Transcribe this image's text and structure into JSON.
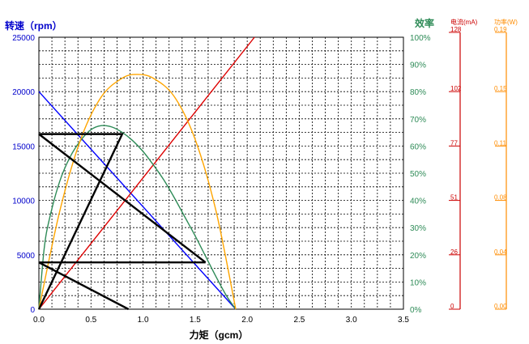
{
  "chart_data": {
    "type": "line",
    "title": "",
    "xlabel": "力矩（gcm）",
    "ylabel": "转速（rpm）",
    "x_ticks": [
      "0.0",
      "0.5",
      "1.0",
      "1.5",
      "2.0",
      "2.5",
      "3.0",
      "3.5"
    ],
    "xlim": [
      0,
      3.5
    ],
    "ylim": [
      0,
      25000
    ],
    "grid": true,
    "axes": {
      "speed": {
        "label": "转速（rpm）",
        "ticks": [
          "0",
          "5000",
          "10000",
          "15000",
          "20000",
          "25000"
        ],
        "color": "#0000cc"
      },
      "efficiency": {
        "label": "效率",
        "ticks": [
          "0%",
          "10%",
          "20%",
          "30%",
          "40%",
          "50%",
          "60%",
          "70%",
          "80%",
          "90%",
          "100%"
        ],
        "range": [
          0,
          100
        ],
        "color": "#2e8b57"
      },
      "current": {
        "label": "电流(mA)",
        "ticks": [
          "0",
          "26",
          "51",
          "77",
          "102",
          "128"
        ],
        "range": [
          0,
          128
        ],
        "color": "#cc0000"
      },
      "power": {
        "label": "功率(W)",
        "ticks": [
          "0.00",
          "0.04",
          "0.08",
          "0.11",
          "0.15",
          "0.19"
        ],
        "range": [
          0,
          0.19
        ],
        "color": "#ff8c00"
      }
    },
    "series": [
      {
        "key": "speed",
        "axis": "speed",
        "color": "#0000ff",
        "kind": "linear",
        "x": [
          0,
          1.89
        ],
        "values": [
          20000,
          0
        ]
      },
      {
        "key": "current",
        "axis": "current",
        "color": "#dd0000",
        "kind": "linear",
        "x": [
          0,
          2.07
        ],
        "values": [
          0,
          128
        ]
      },
      {
        "key": "efficiency",
        "axis": "efficiency",
        "color": "#2e8b57",
        "kind": "curve",
        "x": [
          0,
          0.05,
          0.1,
          0.2,
          0.3,
          0.4,
          0.5,
          0.6,
          0.7,
          0.8,
          0.9,
          1.0,
          1.1,
          1.2,
          1.3,
          1.4,
          1.5,
          1.6,
          1.7,
          1.8,
          1.89
        ],
        "values": [
          0,
          22,
          33,
          47,
          56,
          62,
          66,
          67.5,
          67,
          65,
          62,
          58,
          53,
          47.5,
          41,
          34,
          27,
          19.5,
          12,
          5,
          0
        ]
      },
      {
        "key": "power",
        "axis": "power",
        "color": "#ffa500",
        "kind": "curve",
        "x": [
          0,
          0.2,
          0.4,
          0.6,
          0.8,
          0.945,
          1.1,
          1.3,
          1.5,
          1.7,
          1.89
        ],
        "values": [
          0,
          0.0684,
          0.1184,
          0.1484,
          0.1614,
          0.164,
          0.1613,
          0.1485,
          0.1187,
          0.0688,
          0
        ]
      }
    ],
    "operating_lines": [
      {
        "color": "#000000",
        "points": [
          [
            0,
            16100
          ],
          [
            0.8,
            16100
          ],
          [
            0,
            0
          ]
        ]
      },
      {
        "color": "#000000",
        "points": [
          [
            0,
            16100
          ],
          [
            1.6,
            4300
          ]
        ]
      },
      {
        "color": "#000000",
        "points": [
          [
            0,
            4300
          ],
          [
            1.6,
            4300
          ]
        ]
      },
      {
        "color": "#000000",
        "points": [
          [
            0,
            4300
          ],
          [
            0.86,
            0
          ]
        ]
      }
    ]
  }
}
